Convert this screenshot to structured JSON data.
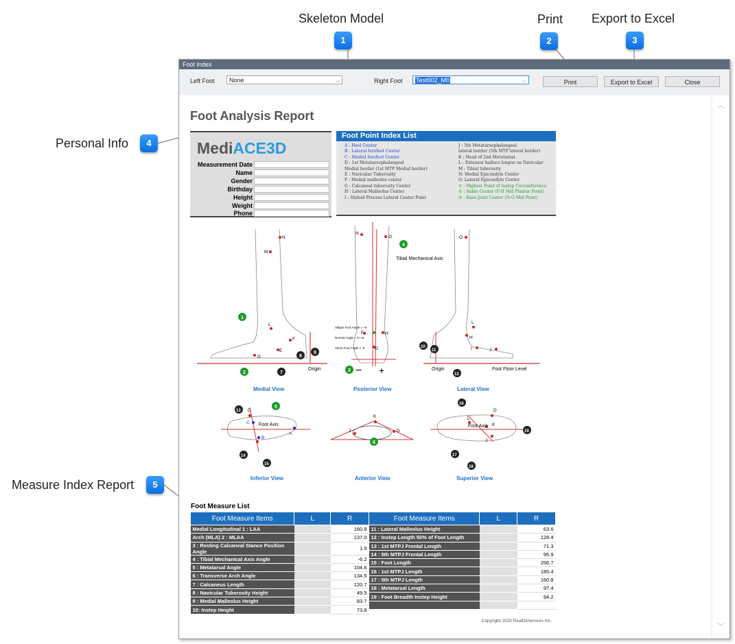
{
  "callouts": [
    {
      "num": "1",
      "title": "Skeleton Model"
    },
    {
      "num": "2",
      "title": "Print"
    },
    {
      "num": "3",
      "title": "Export to Excel"
    },
    {
      "num": "4",
      "title": "Personal Info"
    },
    {
      "num": "5",
      "title": "Measure Index Report"
    }
  ],
  "window": {
    "title": "Foot Index",
    "left_foot_label": "Left Foot",
    "left_foot_value": "None",
    "right_foot_label": "Right Foot",
    "right_foot_value": "Test002_M0",
    "print_label": "Print",
    "export_label": "Export to Excel",
    "close_label": "Close"
  },
  "report": {
    "title": "Foot Analysis Report",
    "logo_a": "Medi",
    "logo_b": "ACE3D",
    "personal_fields": [
      "Measurement Date",
      "Name",
      "Gender",
      "Birthday",
      "Height",
      "Weight",
      "Phone"
    ],
    "point_index_title": "Foot Point Index List",
    "point_index_left": [
      {
        "t": "A : Heel Center",
        "c": "blue"
      },
      {
        "t": "B : Lateral forefoot Center",
        "c": "blue"
      },
      {
        "t": "C : Medial forefoot Center",
        "c": "blue"
      },
      {
        "t": "D : 1st Metatarsophalangeal",
        "c": ""
      },
      {
        "t": "Medial border (1st MTP Medial border)",
        "c": ""
      },
      {
        "t": "E : Navicular Tuberosity",
        "c": ""
      },
      {
        "t": "F : Medial malleolus center",
        "c": ""
      },
      {
        "t": "G : Calcaneal tuberosity Center",
        "c": ""
      },
      {
        "t": "H : Lateral Malleolus Center",
        "c": ""
      },
      {
        "t": "I : Styloid Process Lateral Center Point",
        "c": ""
      }
    ],
    "point_index_right": [
      {
        "t": "J : 5th Metatarsophalangeal",
        "c": ""
      },
      {
        "t": "lateral border (5th MTP lateral border)",
        "c": ""
      },
      {
        "t": "K : Head of 2nd Metatarsal",
        "c": ""
      },
      {
        "t": "L : Extensor hallucs longus on Navicular",
        "c": ""
      },
      {
        "t": "M : Tibial tuberosity",
        "c": ""
      },
      {
        "t": "N: Medial Epicondyle Center",
        "c": ""
      },
      {
        "t": "O: Lateral Epicondyle Center",
        "c": ""
      },
      {
        "t": "① : Highest Point of Instep Circumference",
        "c": "green"
      },
      {
        "t": "② : Ankle Center (F-H Mid Plantar Point)",
        "c": "green"
      },
      {
        "t": "③ : Knee Joint Center (N-O Mid Point)",
        "c": "green"
      }
    ],
    "views": {
      "medial": "Medial View",
      "posterior": "Posterior View",
      "lateral": "Lateral View",
      "inferior": "Inferior View",
      "anterior": "Anterior View",
      "superior": "Superior View"
    },
    "fig_labels": {
      "origin": "Origin",
      "tibial_axis": "Tibial Mechanical Axis",
      "foot_floor": "Foot Floor Level",
      "foot_axis": "Foot Axis",
      "valgus": "Valgus Foot Angle > +6",
      "normal": "Normal Angle = 0~+6",
      "varus": "Varus Foot Angle < -6"
    },
    "measure_title": "Foot Measure List",
    "table_headers": {
      "items": "Foot Measure Items",
      "l": "L",
      "r": "R"
    },
    "measures_left": [
      {
        "n": "Medial Longitudinal          1 :  LAA",
        "l": "",
        "r": "160.8"
      },
      {
        "n": "Arch (MLA)                       2 :  MLAA",
        "l": "",
        "r": "137.0"
      },
      {
        "n": "3 : Resting Calcaneal Stance Position Angle",
        "l": "",
        "r": "1.9"
      },
      {
        "n": "4 :  Tibial Mechanical Axis Angle",
        "l": "",
        "r": "-6.2"
      },
      {
        "n": "5 :  Metatarsal Angle",
        "l": "",
        "r": "104.6"
      },
      {
        "n": "6 : Transverse Arch Angle",
        "l": "",
        "r": "134.5"
      },
      {
        "n": "7 : Calcaneus Length",
        "l": "",
        "r": "120.7"
      },
      {
        "n": "8 : Navicular Tuberosity Height",
        "l": "",
        "r": "49.5"
      },
      {
        "n": "9 : Medial Malleolus Height",
        "l": "",
        "r": "83.7"
      },
      {
        "n": "10: Instep Height",
        "l": "",
        "r": "73.8"
      }
    ],
    "measures_right": [
      {
        "n": "11 : Lateral Malleolus Height",
        "l": "",
        "r": "63.6"
      },
      {
        "n": "12 : Instep Length 50% of Foot Length",
        "l": "",
        "r": "128.4"
      },
      {
        "n": "13 : 1st MTPJ Frontal Length",
        "l": "",
        "r": "71.3"
      },
      {
        "n": "14 : 5th MTPJ Frontal Length",
        "l": "",
        "r": "95.9"
      },
      {
        "n": "15 : Foot Length",
        "l": "",
        "r": "256.7"
      },
      {
        "n": "16 : 1st MTPJ Length",
        "l": "",
        "r": "185.4"
      },
      {
        "n": "17 : 5th MTPJ Length",
        "l": "",
        "r": "160.8"
      },
      {
        "n": "18 : Metatarsal  Length",
        "l": "",
        "r": "97.4"
      },
      {
        "n": "19 : Foot  Breadth Instep Height",
        "l": "",
        "r": "94.2"
      },
      {
        "n": "",
        "l": "",
        "r": ""
      }
    ],
    "copyright": "Copyright 2020 RealDimension Inc."
  },
  "colors": {
    "accent": "#1d6fbe",
    "badge": "#1478e8",
    "red_point": "#d62020",
    "green_marker": "#1e9a2c"
  }
}
